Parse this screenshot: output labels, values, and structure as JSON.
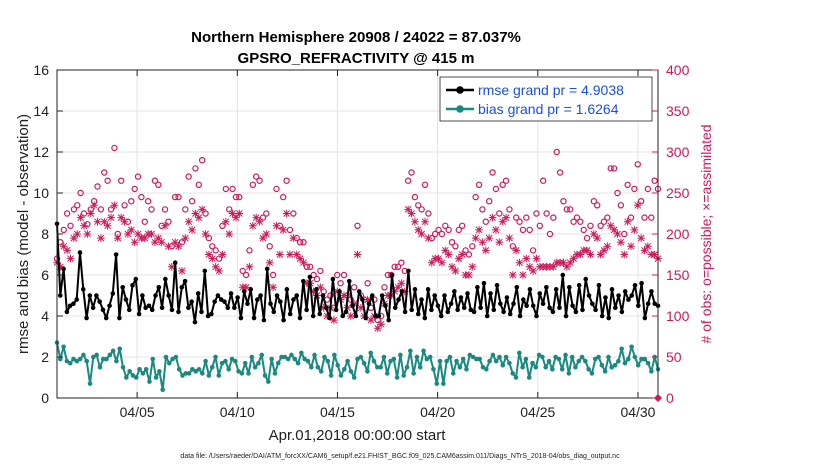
{
  "chart_data": {
    "type": "line",
    "title_line1": "Northern Hemisphere 20908 / 24022 = 87.037%",
    "title_line2": "GPSRO_REFRACTIVITY @ 415 m",
    "xlabel": "Apr.01,2018 00:00:00 start",
    "ylabel_left": "rmse and bias (model - observation)",
    "ylabel_right": "# of obs: o=possible; ×=assimilated",
    "footer": "data file: /Users/raeder/DAI/ATM_forcXX/CAM6_setup/f.e21.FHIST_BGC.f09_025.CAM6assim.011/Diags_NTrS_2018-04/obs_diag_output.nc",
    "x_range_days": [
      1,
      31
    ],
    "x_ticks": [
      {
        "day": 5,
        "label": "04/05"
      },
      {
        "day": 10,
        "label": "04/10"
      },
      {
        "day": 15,
        "label": "04/15"
      },
      {
        "day": 20,
        "label": "04/20"
      },
      {
        "day": 25,
        "label": "04/25"
      },
      {
        "day": 30,
        "label": "04/30"
      }
    ],
    "ylim_left": [
      0,
      16
    ],
    "yticks_left": [
      "0",
      "2",
      "4",
      "6",
      "8",
      "10",
      "12",
      "14",
      "16"
    ],
    "ylim_right": [
      0,
      400
    ],
    "yticks_right": [
      "0",
      "50",
      "100",
      "150",
      "200",
      "250",
      "300",
      "350",
      "400"
    ],
    "series": [
      {
        "name": "rmse grand pr = 4.9038",
        "color": "#000000",
        "marker": "circle",
        "values": [
          8.5,
          5.0,
          6.3,
          4.2,
          4.5,
          4.6,
          4.8,
          7.1,
          5.3,
          3.9,
          5.0,
          4.4,
          5.0,
          4.7,
          4.3,
          3.9,
          4.5,
          5.1,
          7.0,
          3.9,
          5.4,
          4.8,
          4.3,
          5.5,
          5.8,
          4.1,
          5.0,
          4.4,
          4.5,
          4.3,
          5.0,
          5.4,
          4.4,
          5.8,
          5.0,
          4.3,
          6.6,
          4.2,
          5.4,
          5.7,
          4.4,
          4.7,
          3.7,
          5.1,
          4.2,
          6.2,
          4.0,
          4.1,
          4.7,
          5.0,
          4.8,
          4.7,
          4.4,
          5.1,
          4.4,
          4.9,
          3.9,
          5.2,
          4.6,
          5.3,
          3.9,
          4.8,
          5.0,
          3.8,
          6.3,
          4.6,
          4.2,
          5.0,
          4.7,
          3.8,
          5.3,
          4.1,
          4.8,
          5.0,
          3.9,
          5.7,
          4.3,
          5.9,
          4.0,
          5.3,
          4.1,
          5.0,
          4.4,
          3.9,
          5.8,
          4.3,
          5.2,
          4.0,
          4.2,
          5.7,
          4.5,
          4.0,
          5.2,
          4.8,
          3.9,
          4.6,
          5.0,
          4.0,
          4.0,
          5.0,
          4.5,
          3.8,
          6.0,
          4.4,
          4.8,
          5.2,
          4.2,
          6.2,
          4.3,
          5.3,
          4.1,
          4.8,
          3.9,
          5.3,
          4.3,
          5.0,
          4.5,
          4.0,
          5.0,
          4.2,
          4.6,
          5.2,
          4.3,
          4.9,
          4.4,
          5.1,
          4.3,
          4.2,
          5.4,
          4.4,
          5.6,
          4.0,
          5.1,
          4.3,
          5.5,
          4.6,
          4.2,
          4.9,
          4.1,
          4.6,
          5.4,
          4.0,
          4.8,
          4.5,
          5.3,
          4.5,
          4.0,
          5.1,
          4.6,
          5.4,
          4.4,
          4.2,
          5.3,
          4.4,
          6.0,
          4.0,
          5.4,
          4.5,
          4.2,
          5.5,
          4.3,
          5.8,
          5.0,
          4.6,
          4.3,
          5.5,
          4.0,
          4.9,
          3.9,
          5.3,
          4.4,
          5.0,
          4.2,
          5.2,
          4.8,
          5.0,
          5.5,
          4.5,
          5.6,
          3.9,
          4.6,
          5.2,
          4.6,
          4.5
        ]
      },
      {
        "name": "bias grand pr = 1.6264",
        "color": "#1a8a80",
        "marker": "circle",
        "values": [
          2.7,
          1.9,
          2.5,
          1.8,
          1.7,
          1.9,
          1.8,
          1.9,
          2.1,
          1.8,
          0.7,
          2.0,
          2.1,
          1.5,
          1.9,
          1.9,
          2.1,
          2.3,
          1.8,
          2.4,
          1.5,
          1.0,
          1.3,
          1.1,
          1.0,
          1.4,
          1.2,
          1.4,
          0.8,
          1.9,
          1.0,
          1.3,
          0.4,
          2.0,
          1.7,
          1.9,
          2.0,
          1.4,
          1.1,
          1.2,
          1.2,
          1.4,
          1.3,
          1.4,
          1.2,
          1.8,
          1.1,
          1.5,
          2.0,
          1.1,
          1.7,
          1.8,
          1.4,
          1.9,
          1.8,
          1.3,
          1.2,
          1.7,
          1.2,
          2.0,
          1.5,
          1.7,
          2.1,
          1.1,
          0.8,
          1.9,
          1.2,
          1.7,
          2.0,
          2.0,
          1.9,
          2.1,
          1.9,
          1.7,
          2.2,
          1.9,
          1.8,
          1.5,
          2.1,
          1.5,
          1.3,
          2.0,
          1.8,
          1.1,
          2.1,
          1.6,
          1.1,
          1.4,
          1.8,
          1.3,
          1.0,
          1.9,
          2.0,
          1.7,
          1.3,
          2.2,
          1.8,
          1.5,
          1.5,
          2.0,
          1.2,
          1.8,
          1.9,
          1.0,
          2.1,
          1.1,
          1.5,
          2.3,
          1.2,
          2.0,
          1.5,
          2.3,
          1.9,
          2.0,
          1.4,
          0.7,
          1.8,
          0.7,
          1.8,
          2.0,
          1.2,
          1.8,
          1.5,
          1.9,
          1.4,
          2.1,
          2.0,
          1.9,
          1.9,
          1.5,
          1.4,
          1.8,
          2.1,
          1.8,
          2.0,
          1.6,
          2.0,
          1.7,
          1.2,
          1.0,
          2.2,
          1.5,
          1.9,
          1.0,
          1.7,
          1.5,
          2.1,
          2.0,
          1.5,
          1.8,
          1.4,
          2.0,
          1.9,
          1.4,
          2.1,
          1.2,
          2.0,
          1.5,
          1.8,
          2.0,
          1.8,
          1.4,
          1.2,
          1.9,
          2.0,
          1.6,
          1.3,
          2.0,
          1.5,
          1.6,
          1.8,
          2.4,
          1.7,
          1.9,
          2.5,
          2.0,
          1.6,
          1.9,
          1.9,
          1.7,
          1.3,
          2.0,
          1.4
        ]
      }
    ],
    "obs_series": [
      {
        "name": "possible",
        "color": "#cc1a5a",
        "marker": "o",
        "values": [
          170,
          190,
          205,
          225,
          210,
          230,
          235,
          250,
          225,
          212,
          230,
          240,
          258,
          230,
          275,
          265,
          230,
          305,
          200,
          265,
          235,
          215,
          240,
          255,
          270,
          245,
          215,
          240,
          230,
          265,
          260,
          210,
          230,
          215,
          185,
          245,
          245,
          190,
          230,
          270,
          240,
          280,
          260,
          290,
          225,
          195,
          185,
          180,
          170,
          210,
          255,
          230,
          255,
          245,
          245,
          155,
          150,
          180,
          260,
          270,
          265,
          220,
          225,
          185,
          150,
          255,
          210,
          245,
          265,
          205,
          225,
          195,
          190,
          190,
          160,
          160,
          150,
          145,
          155,
          130,
          120,
          125,
          110,
          150,
          140,
          150,
          125,
          120,
          135,
          210,
          125,
          120,
          140,
          110,
          120,
          95,
          100,
          135,
          150,
          150,
          160,
          160,
          165,
          155,
          265,
          275,
          245,
          235,
          230,
          260,
          225,
          195,
          200,
          205,
          200,
          210,
          205,
          190,
          185,
          205,
          210,
          180,
          175,
          185,
          245,
          260,
          230,
          215,
          240,
          275,
          255,
          225,
          260,
          265,
          230,
          185,
          220,
          215,
          205,
          220,
          205,
          180,
          225,
          210,
          265,
          225,
          200,
          220,
          300,
          275,
          240,
          230,
          230,
          215,
          220,
          215,
          205,
          195,
          210,
          240,
          235,
          210,
          215,
          220,
          280,
          280,
          250,
          235,
          200,
          260,
          220,
          255,
          285,
          240,
          220,
          255,
          220,
          265,
          255
        ]
      },
      {
        "name": "assimilated",
        "color": "#cc1a5a",
        "marker": "x",
        "values": [
          165,
          160,
          185,
          180,
          170,
          195,
          200,
          220,
          210,
          200,
          225,
          235,
          215,
          195,
          215,
          210,
          220,
          235,
          195,
          220,
          215,
          200,
          205,
          190,
          200,
          195,
          195,
          200,
          200,
          190,
          195,
          190,
          210,
          185,
          160,
          190,
          185,
          155,
          195,
          215,
          205,
          225,
          220,
          230,
          200,
          175,
          170,
          160,
          155,
          175,
          215,
          200,
          225,
          220,
          225,
          135,
          135,
          160,
          210,
          220,
          215,
          195,
          200,
          165,
          135,
          210,
          175,
          205,
          225,
          175,
          195,
          175,
          170,
          165,
          140,
          140,
          130,
          125,
          135,
          110,
          100,
          110,
          95,
          130,
          120,
          125,
          110,
          100,
          115,
          175,
          110,
          100,
          120,
          95,
          100,
          85,
          90,
          115,
          125,
          125,
          130,
          135,
          140,
          130,
          230,
          225,
          215,
          205,
          200,
          215,
          195,
          165,
          170,
          170,
          165,
          180,
          175,
          160,
          155,
          170,
          175,
          150,
          150,
          160,
          195,
          205,
          190,
          180,
          195,
          220,
          205,
          190,
          215,
          220,
          195,
          150,
          180,
          165,
          150,
          170,
          160,
          155,
          170,
          160,
          160,
          160,
          160,
          160,
          165,
          165,
          165,
          160,
          165,
          170,
          175,
          175,
          180,
          180,
          175,
          200,
          195,
          175,
          180,
          185,
          210,
          205,
          200,
          190,
          175,
          215,
          185,
          205,
          235,
          195,
          180,
          185,
          175,
          175,
          170
        ]
      }
    ],
    "legend": {
      "placement": "top-right"
    }
  }
}
